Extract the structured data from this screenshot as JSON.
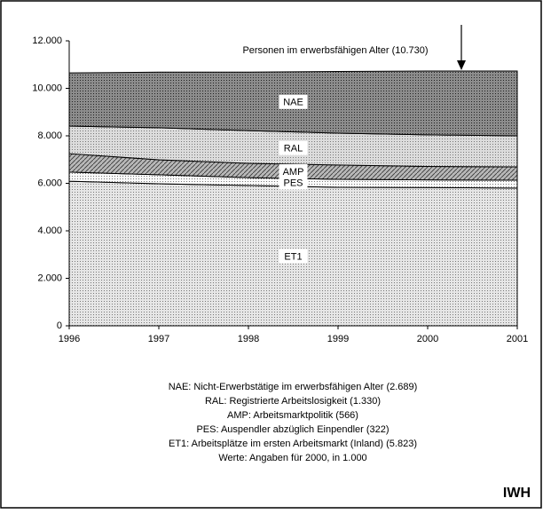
{
  "chart_data": {
    "type": "stacked-area",
    "annotation": "Personen im erwerbsfähigen Alter (10.730)",
    "x": [
      1996,
      1997,
      1998,
      1999,
      2000,
      2001
    ],
    "xlim": [
      1996,
      2001
    ],
    "xticks": [
      1996,
      1997,
      1998,
      1999,
      2000,
      2001
    ],
    "ylim": [
      0,
      12000
    ],
    "yticks": [
      {
        "value": 0,
        "label": "0"
      },
      {
        "value": 2000,
        "label": "2.000"
      },
      {
        "value": 4000,
        "label": "4.000"
      },
      {
        "value": 6000,
        "label": "6.000"
      },
      {
        "value": 8000,
        "label": "8.000"
      },
      {
        "value": 10000,
        "label": "10.000"
      },
      {
        "value": 12000,
        "label": "12.000"
      }
    ],
    "series": [
      {
        "name": "ET1",
        "color": "#e6e6e6",
        "values": [
          6090,
          5980,
          5910,
          5830,
          5823,
          5800
        ]
      },
      {
        "name": "PES",
        "color": "#fafafa",
        "values": [
          380,
          380,
          330,
          340,
          322,
          330
        ]
      },
      {
        "name": "AMP",
        "color": "#b8b8b8",
        "values": [
          780,
          630,
          600,
          600,
          566,
          560
        ]
      },
      {
        "name": "RAL",
        "color": "#dcdcdc",
        "values": [
          1160,
          1350,
          1380,
          1340,
          1330,
          1310
        ]
      },
      {
        "name": "NAE",
        "color": "#8c8c8c",
        "values": [
          2240,
          2340,
          2460,
          2600,
          2689,
          2730
        ]
      }
    ],
    "notes": [
      "NAE: Nicht-Erwerbstätige im erwerbsfähigen Alter (2.689)",
      "RAL: Registrierte Arbeitslosigkeit (1.330)",
      "AMP: Arbeitsmarktpolitik (566)",
      "PES: Auspendler abzüglich Einpendler (322)",
      "ET1: Arbeitsplätze im ersten Arbeitsmarkt (Inland) (5.823)",
      "Werte: Angaben für 2000, in 1.000"
    ],
    "source": "IWH"
  }
}
